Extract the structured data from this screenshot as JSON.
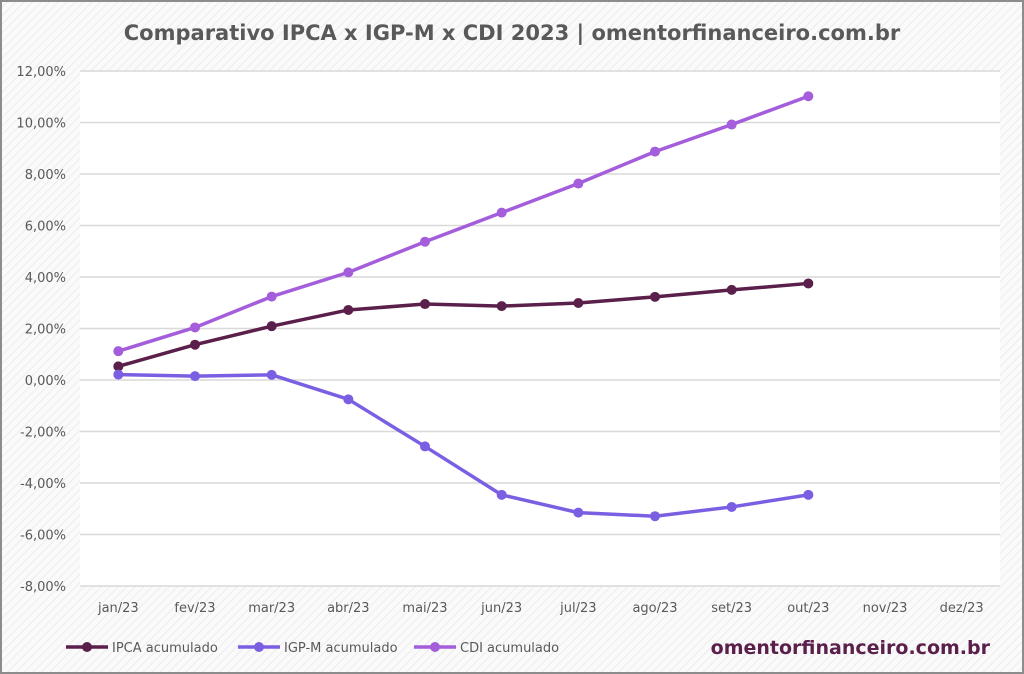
{
  "chart_data": {
    "type": "line",
    "title": "Comparativo IPCA x IGP-M x CDI 2023 | omentorfinanceiro.com.br",
    "xlabel": "",
    "ylabel": "",
    "categories": [
      "jan/23",
      "fev/23",
      "mar/23",
      "abr/23",
      "mai/23",
      "jun/23",
      "jul/23",
      "ago/23",
      "set/23",
      "out/23",
      "nov/23",
      "dez/23"
    ],
    "ylim": [
      -8,
      12
    ],
    "ytick_step": 2,
    "ytick_labels": [
      "12,00%",
      "10,00%",
      "8,00%",
      "6,00%",
      "4,00%",
      "2,00%",
      "0,00%",
      "-2,00%",
      "-4,00%",
      "-6,00%",
      "-8,00%"
    ],
    "grid": true,
    "legend_position": "bottom-left",
    "series": [
      {
        "name": "IPCA acumulado",
        "color": "#5a1f4a",
        "values": [
          0.53,
          1.37,
          2.09,
          2.72,
          2.95,
          2.87,
          2.99,
          3.23,
          3.5,
          3.75,
          null,
          null
        ]
      },
      {
        "name": "IGP-M acumulado",
        "color": "#7b5fe3",
        "values": [
          0.21,
          0.15,
          0.2,
          -0.75,
          -2.58,
          -4.46,
          -5.15,
          -5.29,
          -4.93,
          -4.46,
          null,
          null
        ]
      },
      {
        "name": "CDI acumulado",
        "color": "#a45ddb",
        "values": [
          1.12,
          2.04,
          3.24,
          4.18,
          5.37,
          6.5,
          7.63,
          8.87,
          9.92,
          11.02,
          null,
          null
        ]
      }
    ],
    "watermark": "omentorfinanceiro.com.br",
    "watermark_color": "#5a1f4a"
  }
}
